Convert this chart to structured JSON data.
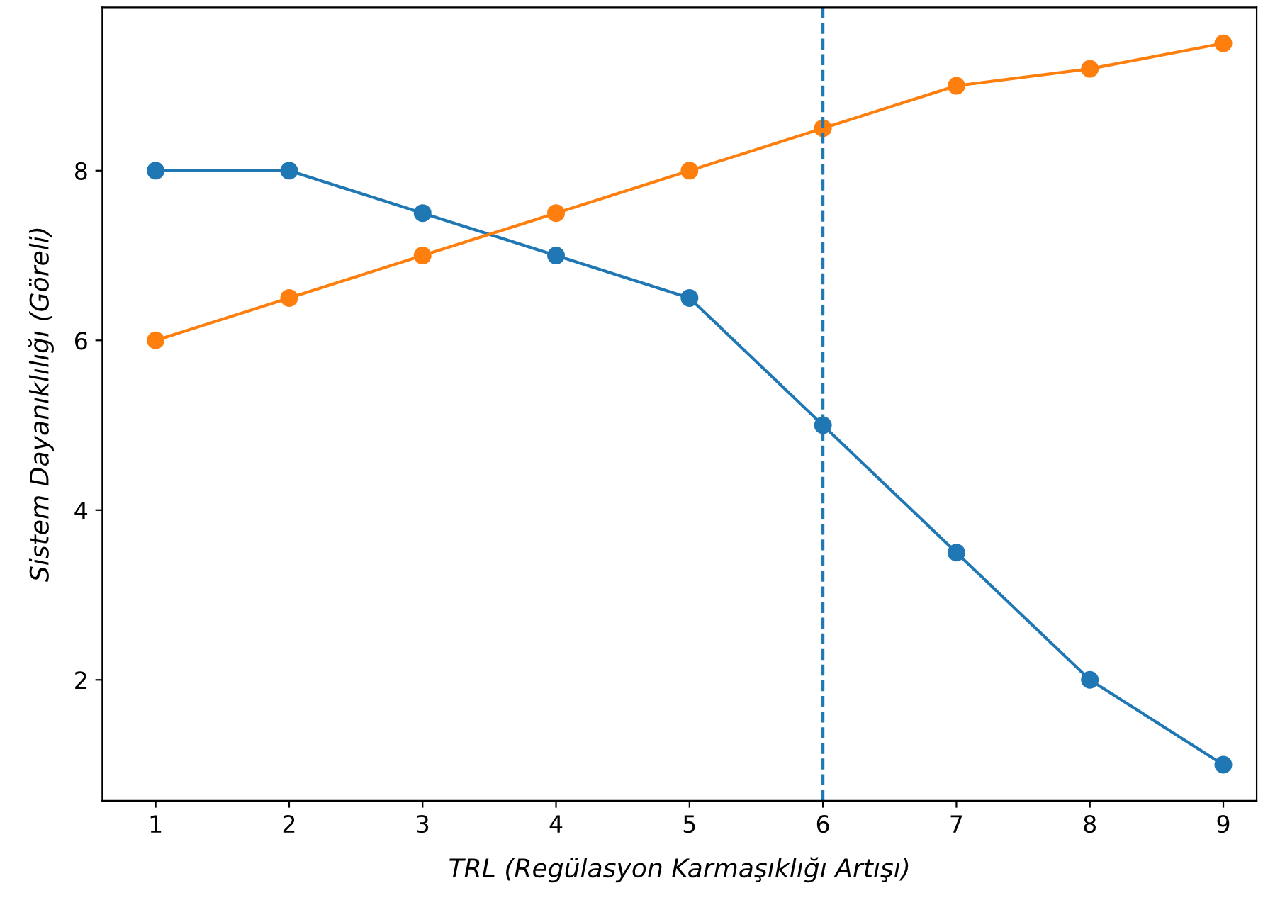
{
  "chart_data": {
    "type": "line",
    "xlabel": "TRL (Regülasyon Karmaşıklığı Artışı)",
    "ylabel": "Sistem Dayanıklılığı (Göreli)",
    "x": [
      1,
      2,
      3,
      4,
      5,
      6,
      7,
      8,
      9
    ],
    "series": [
      {
        "color": "#1f77b4",
        "values": [
          8,
          8,
          7.5,
          7,
          6.5,
          5,
          3.5,
          2,
          1
        ]
      },
      {
        "color": "#ff7f0e",
        "values": [
          6,
          6.5,
          7,
          7.5,
          8,
          8.5,
          9,
          9.2,
          9.5
        ]
      }
    ],
    "marker": "circle",
    "line_style": "solid",
    "xlim": [
      0.6,
      9.25
    ],
    "ylim": [
      0.575,
      9.925
    ],
    "xticks": [
      1,
      2,
      3,
      4,
      5,
      6,
      7,
      8,
      9
    ],
    "yticks": [
      2,
      4,
      6,
      8
    ],
    "ref_lines": [
      {
        "axis": "x",
        "value": 6,
        "color": "#1f77b4",
        "line_style": "dashed"
      }
    ],
    "grid": false,
    "legend": false
  }
}
